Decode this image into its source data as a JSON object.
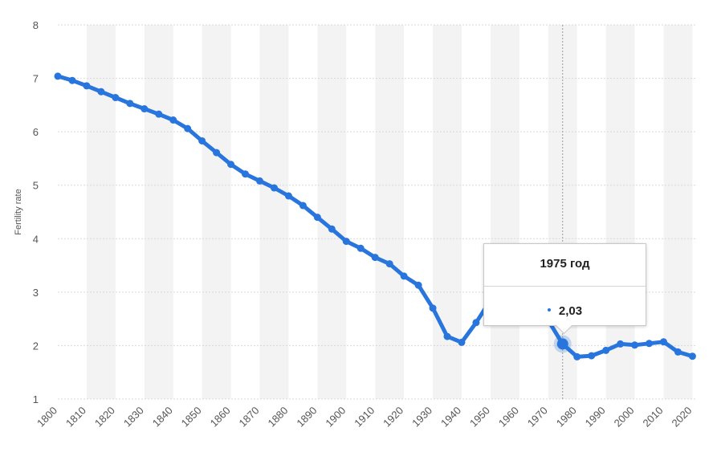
{
  "chart_data": {
    "type": "line",
    "ylabel": "Fertility rate",
    "ylim": [
      1,
      8
    ],
    "yticks": [
      "1",
      "2",
      "3",
      "4",
      "5",
      "6",
      "7",
      "8"
    ],
    "xlim": [
      1800,
      2022
    ],
    "xticks": [
      "1800",
      "1810",
      "1820",
      "1830",
      "1840",
      "1850",
      "1860",
      "1870",
      "1880",
      "1890",
      "1900",
      "1910",
      "1920",
      "1930",
      "1940",
      "1950",
      "1960",
      "1970",
      "1980",
      "1990",
      "2000",
      "2010",
      "2020"
    ],
    "grid": true,
    "series": [
      {
        "color": "#2876dd",
        "x": [
          1800,
          1805,
          1810,
          1815,
          1820,
          1825,
          1830,
          1835,
          1840,
          1845,
          1850,
          1855,
          1860,
          1865,
          1870,
          1875,
          1880,
          1885,
          1890,
          1895,
          1900,
          1905,
          1910,
          1915,
          1920,
          1925,
          1930,
          1935,
          1940,
          1945,
          1950,
          1955,
          1960,
          1965,
          1970,
          1975,
          1980,
          1985,
          1990,
          1995,
          2000,
          2005,
          2010,
          2015,
          2020
        ],
        "y": [
          7.04,
          6.96,
          6.86,
          6.75,
          6.64,
          6.53,
          6.43,
          6.33,
          6.22,
          6.06,
          5.83,
          5.61,
          5.39,
          5.21,
          5.08,
          4.95,
          4.8,
          4.62,
          4.4,
          4.18,
          3.95,
          3.82,
          3.65,
          3.53,
          3.3,
          3.13,
          2.7,
          2.17,
          2.06,
          2.43,
          2.85,
          3.55,
          3.65,
          2.95,
          2.47,
          2.03,
          1.79,
          1.81,
          1.91,
          2.03,
          2.01,
          2.04,
          2.07,
          1.88,
          1.8
        ]
      }
    ],
    "highlight": {
      "x": 1975,
      "y": 2.03
    },
    "tooltip": {
      "title": "1975 год",
      "value": "2,03"
    }
  },
  "colors": {
    "line": "#2876dd",
    "band": "#f3f3f3",
    "grid": "#d9d9d9",
    "text": "#555555"
  }
}
